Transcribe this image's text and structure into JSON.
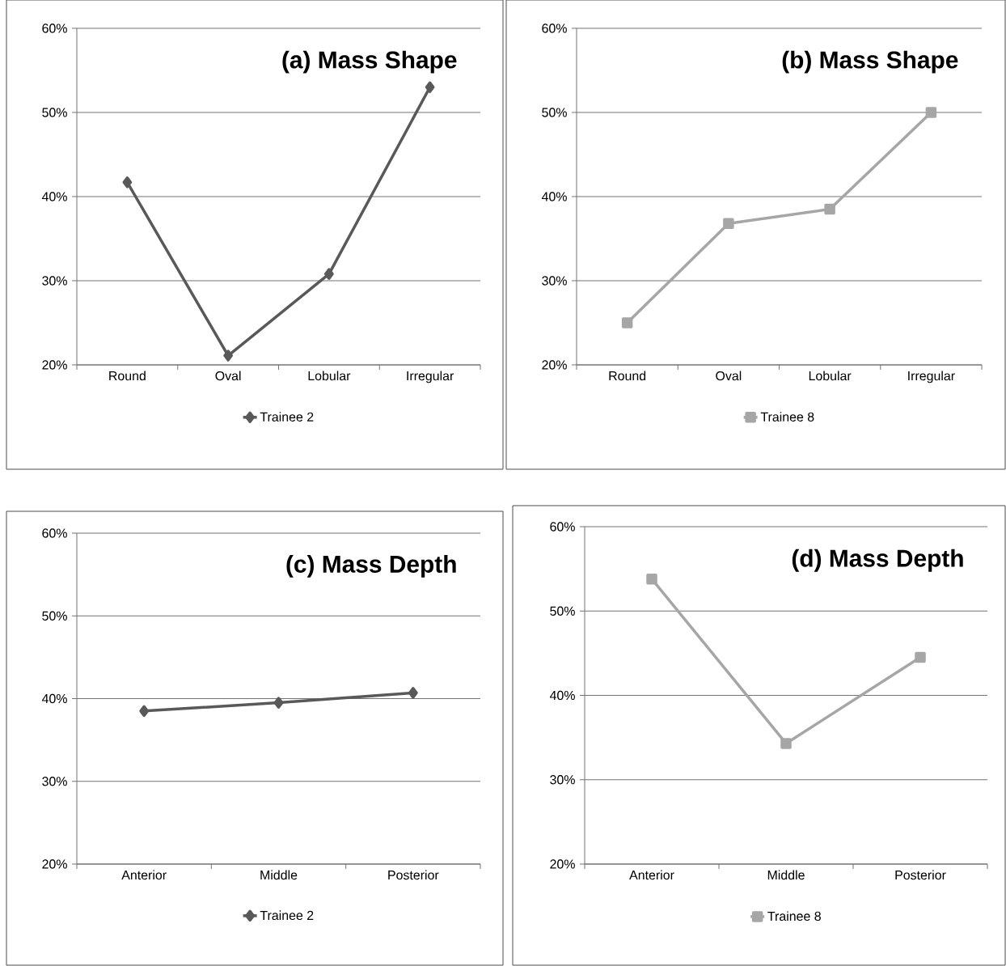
{
  "chart_data": [
    {
      "type": "line",
      "title": "(a) Mass Shape",
      "categories": [
        "Round",
        "Oval",
        "Lobular",
        "Irregular"
      ],
      "series": [
        {
          "name": "Trainee 2",
          "color": "#595959",
          "values": [
            41.7,
            21.1,
            30.8,
            53.0
          ]
        }
      ],
      "ylim": [
        20,
        60
      ],
      "yticks": [
        {
          "value": 20,
          "label": "20%"
        },
        {
          "value": 30,
          "label": "30%"
        },
        {
          "value": 40,
          "label": "40%"
        },
        {
          "value": 50,
          "label": "50%"
        },
        {
          "value": 60,
          "label": "60%"
        }
      ],
      "grid": "y",
      "legend": "bottom",
      "marker": "diamond"
    },
    {
      "type": "line",
      "title": "(b) Mass Shape",
      "categories": [
        "Round",
        "Oval",
        "Lobular",
        "Irregular"
      ],
      "series": [
        {
          "name": "Trainee 8",
          "color": "#a6a6a6",
          "values": [
            25.0,
            36.8,
            38.5,
            50.0
          ]
        }
      ],
      "ylim": [
        20,
        60
      ],
      "yticks": [
        {
          "value": 20,
          "label": "20%"
        },
        {
          "value": 30,
          "label": "30%"
        },
        {
          "value": 40,
          "label": "40%"
        },
        {
          "value": 50,
          "label": "50%"
        },
        {
          "value": 60,
          "label": "60%"
        }
      ],
      "grid": "y",
      "legend": "bottom",
      "marker": "square"
    },
    {
      "type": "line",
      "title": "(c) Mass Depth",
      "categories": [
        "Anterior",
        "Middle",
        "Posterior"
      ],
      "series": [
        {
          "name": "Trainee 2",
          "color": "#595959",
          "values": [
            38.5,
            39.5,
            40.7
          ]
        }
      ],
      "ylim": [
        20,
        60
      ],
      "yticks": [
        {
          "value": 20,
          "label": "20%"
        },
        {
          "value": 30,
          "label": "30%"
        },
        {
          "value": 40,
          "label": "40%"
        },
        {
          "value": 50,
          "label": "50%"
        },
        {
          "value": 60,
          "label": "60%"
        }
      ],
      "grid": "y",
      "legend": "bottom",
      "marker": "diamond"
    },
    {
      "type": "line",
      "title": "(d) Mass Depth",
      "categories": [
        "Anterior",
        "Middle",
        "Posterior"
      ],
      "series": [
        {
          "name": "Trainee 8",
          "color": "#a6a6a6",
          "values": [
            53.8,
            34.3,
            44.5
          ]
        }
      ],
      "ylim": [
        20,
        60
      ],
      "yticks": [
        {
          "value": 20,
          "label": "20%"
        },
        {
          "value": 30,
          "label": "30%"
        },
        {
          "value": 40,
          "label": "40%"
        },
        {
          "value": 50,
          "label": "50%"
        },
        {
          "value": 60,
          "label": "60%"
        }
      ],
      "grid": "y",
      "legend": "bottom",
      "marker": "square"
    }
  ]
}
